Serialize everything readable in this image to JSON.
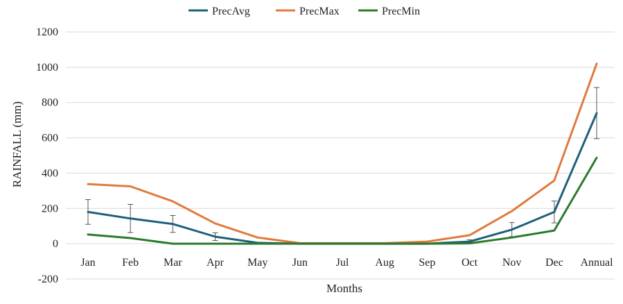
{
  "chart_data": {
    "type": "line",
    "title": "",
    "xlabel": "Months",
    "ylabel": "RAINFALL (mm)",
    "categories": [
      "Jan",
      "Feb",
      "Mar",
      "Apr",
      "May",
      "Jun",
      "Jul",
      "Aug",
      "Sep",
      "Oct",
      "Nov",
      "Dec",
      "Annual"
    ],
    "ylim": [
      -200,
      1200
    ],
    "yticks": [
      "-200",
      "0",
      "200",
      "400",
      "600",
      "800",
      "1000",
      "1200"
    ],
    "grid": "horizontal",
    "legend_position": "top",
    "series": [
      {
        "name": "PrecAvg",
        "color": "#1f5f7a",
        "values": [
          180,
          143,
          112,
          40,
          5,
          0,
          0,
          0,
          0,
          12,
          80,
          180,
          740
        ],
        "error": [
          70,
          80,
          48,
          22,
          3,
          0,
          0,
          0,
          0,
          10,
          40,
          62,
          145
        ]
      },
      {
        "name": "PrecMax",
        "color": "#e07a3c",
        "values": [
          338,
          325,
          240,
          115,
          35,
          3,
          3,
          3,
          12,
          48,
          185,
          358,
          1020
        ]
      },
      {
        "name": "PrecMin",
        "color": "#2a7a2e",
        "values": [
          52,
          32,
          0,
          0,
          0,
          0,
          0,
          0,
          0,
          2,
          35,
          75,
          487
        ]
      }
    ]
  }
}
